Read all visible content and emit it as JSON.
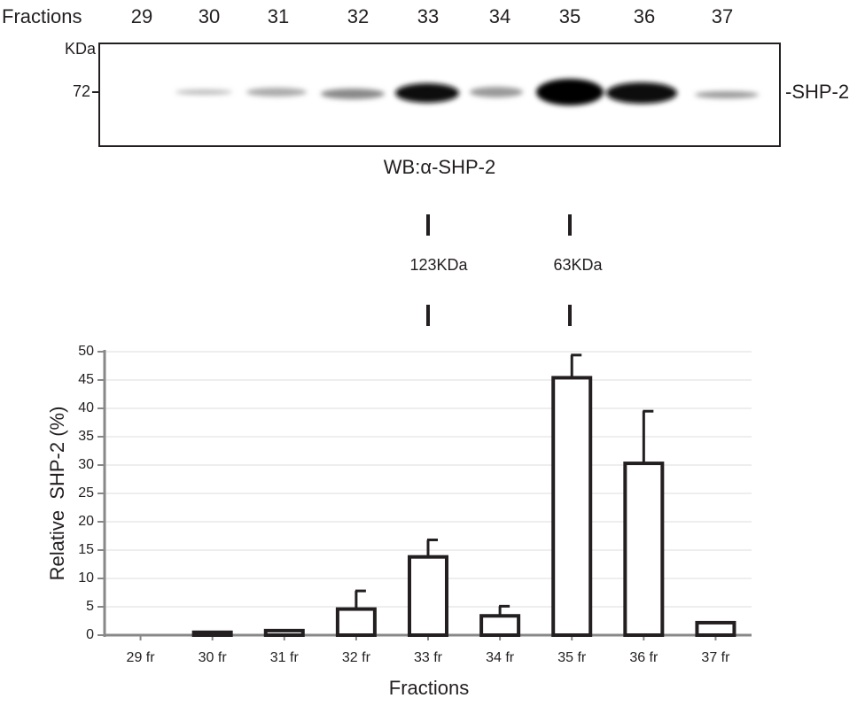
{
  "blot": {
    "fractions_label": "Fractions",
    "fractions": [
      "29",
      "30",
      "31",
      "32",
      "33",
      "34",
      "35",
      "36",
      "37"
    ],
    "kda_label": "KDa",
    "marker": "72",
    "band_label": "-SHP-2",
    "caption": "WB:α-SHP-2"
  },
  "size_markers": [
    "123KDa",
    "63KDa"
  ],
  "chart_data": {
    "type": "bar",
    "xlabel": "Fractions",
    "ylabel": "Relative  SHP-2 (%)",
    "categories": [
      "29 fr",
      "30 fr",
      "31 fr",
      "32 fr",
      "33 fr",
      "34 fr",
      "35 fr",
      "36 fr",
      "37 fr"
    ],
    "values": [
      0,
      0.5,
      0.8,
      4.6,
      13.8,
      3.4,
      45.4,
      30.3,
      2.2
    ],
    "errors": [
      null,
      null,
      null,
      3.2,
      3.0,
      1.7,
      4.0,
      9.2,
      null
    ],
    "color": "#ffffff",
    "ylim": [
      0,
      50
    ],
    "yticks": [
      0,
      5,
      10,
      15,
      20,
      25,
      30,
      35,
      40,
      45,
      50
    ],
    "grid": true
  }
}
